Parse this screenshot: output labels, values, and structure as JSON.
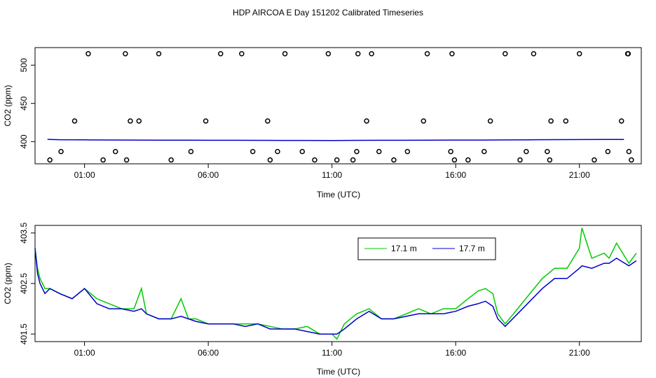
{
  "figure": {
    "title": "HDP AIRCOA E  Day 151202  Calibrated Timeseries"
  },
  "chart_data": [
    {
      "type": "scatter",
      "xlabel": "Time (UTC)",
      "ylabel": "CO2 (ppm)",
      "xlim": [
        23.0,
        47.5
      ],
      "ylim": [
        371,
        523
      ],
      "x_ticks": [
        25,
        30,
        35,
        40,
        45
      ],
      "x_tick_labels": [
        "01:00",
        "06:00",
        "11:00",
        "16:00",
        "21:00"
      ],
      "y_ticks": [
        400,
        450,
        500
      ],
      "y_tick_labels": [
        "400",
        "450",
        "500"
      ],
      "grid": false,
      "series": [
        {
          "color": "#0000cc",
          "x": [
            23.5,
            24.0,
            25.0,
            26.0,
            27.0,
            28.0,
            29.0,
            30.0,
            31.0,
            32.0,
            33.0,
            34.0,
            35.0,
            36.0,
            37.0,
            38.0,
            39.0,
            40.0,
            41.0,
            42.0,
            43.0,
            44.0,
            45.0,
            46.0,
            46.8
          ],
          "y": [
            403.0,
            402.5,
            402.3,
            402.1,
            402.0,
            401.9,
            401.9,
            401.8,
            401.8,
            401.7,
            401.6,
            401.6,
            401.5,
            401.7,
            401.8,
            401.8,
            401.9,
            402.0,
            402.0,
            402.2,
            402.4,
            402.6,
            402.7,
            402.8,
            402.9
          ]
        },
        {
          "color": "#000000",
          "marker": "open-circle",
          "x": [
            23.6,
            24.05,
            24.6,
            25.15,
            25.75,
            26.25,
            26.65,
            26.7,
            26.85,
            27.2,
            28.0,
            28.5,
            29.3,
            29.9,
            30.5,
            31.35,
            31.8,
            32.4,
            32.5,
            32.8,
            33.1,
            33.8,
            34.3,
            34.85,
            35.2,
            35.85,
            36.0,
            36.05,
            36.4,
            36.6,
            36.9,
            37.5,
            38.05,
            38.7,
            38.85,
            39.8,
            39.85,
            39.95,
            40.5,
            41.15,
            41.4,
            42.0,
            42.6,
            42.85,
            43.15,
            43.7,
            43.8,
            43.85,
            44.45,
            45.0,
            45.6,
            46.15,
            46.7,
            46.95,
            46.97,
            47.0,
            47.1
          ],
          "y": [
            376,
            387,
            427,
            515,
            376,
            387,
            515,
            376,
            427,
            427,
            515,
            376,
            387,
            427,
            515,
            515,
            387,
            427,
            376,
            387,
            515,
            387,
            376,
            515,
            376,
            376,
            387,
            515,
            427,
            515,
            387,
            376,
            387,
            427,
            515,
            387,
            515,
            376,
            376,
            387,
            427,
            515,
            376,
            387,
            515,
            387,
            376,
            427,
            427,
            515,
            376,
            387,
            427,
            515,
            515,
            387,
            376
          ]
        }
      ]
    },
    {
      "type": "line",
      "xlabel": "Time (UTC)",
      "ylabel": "CO2 (ppm)",
      "xlim": [
        23.0,
        47.5
      ],
      "ylim": [
        401.35,
        403.65
      ],
      "x_ticks": [
        25,
        30,
        35,
        40,
        45
      ],
      "x_tick_labels": [
        "01:00",
        "06:00",
        "11:00",
        "16:00",
        "21:00"
      ],
      "y_ticks": [
        401.5,
        402.5,
        403.5
      ],
      "y_tick_labels": [
        "401.5",
        "402.5",
        "403.5"
      ],
      "grid": false,
      "legend_position": "top-right",
      "series": [
        {
          "name": "17.1 m",
          "color": "#00cc00",
          "x": [
            23.0,
            23.1,
            23.2,
            23.4,
            23.6,
            24.0,
            24.5,
            25.0,
            25.5,
            26.0,
            26.5,
            27.0,
            27.3,
            27.5,
            28.0,
            28.5,
            28.9,
            29.2,
            29.5,
            30.0,
            30.5,
            31.0,
            31.5,
            32.0,
            32.5,
            33.0,
            33.5,
            34.0,
            34.5,
            35.0,
            35.2,
            35.5,
            36.0,
            36.5,
            37.0,
            37.5,
            38.0,
            38.5,
            39.0,
            39.5,
            40.0,
            40.5,
            40.9,
            41.2,
            41.5,
            41.7,
            42.0,
            42.5,
            43.0,
            43.5,
            44.0,
            44.5,
            45.0,
            45.1,
            45.5,
            46.0,
            46.2,
            46.5,
            47.0,
            47.3
          ],
          "y": [
            403.2,
            402.8,
            402.6,
            402.4,
            402.4,
            402.3,
            402.2,
            402.4,
            402.2,
            402.1,
            402.0,
            402.0,
            402.4,
            401.9,
            401.8,
            401.8,
            402.2,
            401.8,
            401.8,
            401.7,
            401.7,
            401.7,
            401.7,
            401.7,
            401.65,
            401.6,
            401.6,
            401.65,
            401.5,
            401.5,
            401.4,
            401.7,
            401.9,
            402.0,
            401.8,
            401.8,
            401.9,
            402.0,
            401.9,
            402.0,
            402.0,
            402.2,
            402.35,
            402.4,
            402.3,
            401.9,
            401.7,
            402.0,
            402.3,
            402.6,
            402.8,
            402.8,
            403.2,
            403.6,
            403.0,
            403.1,
            403.0,
            403.3,
            402.9,
            403.1
          ]
        },
        {
          "name": "17.7 m",
          "color": "#0000cc",
          "x": [
            23.0,
            23.1,
            23.2,
            23.4,
            23.6,
            24.0,
            24.5,
            25.0,
            25.5,
            26.0,
            26.5,
            27.0,
            27.3,
            27.5,
            28.0,
            28.5,
            28.9,
            29.2,
            29.5,
            30.0,
            30.5,
            31.0,
            31.5,
            32.0,
            32.5,
            33.0,
            33.5,
            34.0,
            34.5,
            35.0,
            35.2,
            35.5,
            36.0,
            36.5,
            37.0,
            37.5,
            38.0,
            38.5,
            39.0,
            39.5,
            40.0,
            40.5,
            40.9,
            41.2,
            41.5,
            41.7,
            42.0,
            42.5,
            43.0,
            43.5,
            44.0,
            44.5,
            45.0,
            45.1,
            45.5,
            46.0,
            46.2,
            46.5,
            47.0,
            47.3
          ],
          "y": [
            403.2,
            402.7,
            402.5,
            402.3,
            402.4,
            402.3,
            402.2,
            402.4,
            402.1,
            402.0,
            402.0,
            401.95,
            402.0,
            401.9,
            401.8,
            401.8,
            401.85,
            401.8,
            401.75,
            401.7,
            401.7,
            401.7,
            401.65,
            401.7,
            401.6,
            401.6,
            401.6,
            401.55,
            401.5,
            401.5,
            401.5,
            401.6,
            401.8,
            401.95,
            401.8,
            401.8,
            401.85,
            401.9,
            401.9,
            401.9,
            401.95,
            402.05,
            402.1,
            402.15,
            402.05,
            401.8,
            401.65,
            401.9,
            402.15,
            402.4,
            402.6,
            402.6,
            402.8,
            402.85,
            402.8,
            402.9,
            402.9,
            403.0,
            402.85,
            402.95
          ]
        }
      ]
    }
  ]
}
